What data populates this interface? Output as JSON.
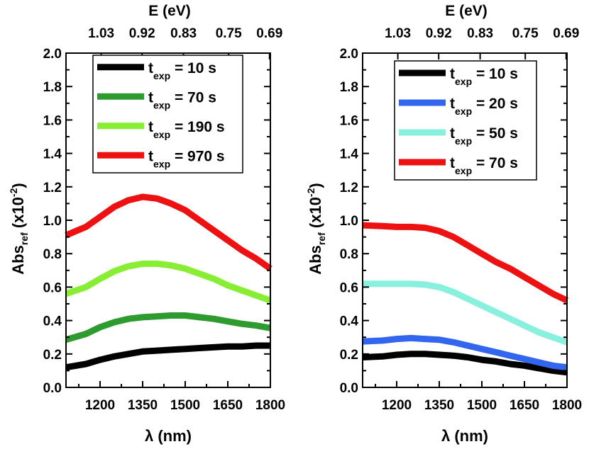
{
  "chart_data": [
    {
      "type": "line",
      "panel": "left",
      "xlabel": "λ (nm)",
      "ylabel": {
        "main": "Abs",
        "sub": "ref",
        "unit_open": " (x10",
        "unit_sup": "-2",
        "unit_close": ")"
      },
      "top_axis_title": "E (eV)",
      "xlim": [
        1080,
        1800
      ],
      "ylim": [
        0.0,
        2.0
      ],
      "x_ticks": [
        1200,
        1350,
        1500,
        1650,
        1800
      ],
      "y_ticks": [
        "0.0",
        "0.2",
        "0.4",
        "0.6",
        "0.8",
        "1.0",
        "1.2",
        "1.4",
        "1.6",
        "1.8",
        "2.0"
      ],
      "top_ticks": [
        {
          "label": "1.03",
          "at_nm": 1204
        },
        {
          "label": "0.92",
          "at_nm": 1348
        },
        {
          "label": "0.83",
          "at_nm": 1494
        },
        {
          "label": "0.75",
          "at_nm": 1653
        },
        {
          "label": "0.69",
          "at_nm": 1797
        }
      ],
      "series": [
        {
          "name": "t",
          "sub": "exp",
          "value": " = 10 s",
          "color": "#000000",
          "x": [
            1080,
            1150,
            1200,
            1250,
            1300,
            1350,
            1400,
            1450,
            1500,
            1550,
            1600,
            1650,
            1700,
            1750,
            1800
          ],
          "y": [
            0.12,
            0.14,
            0.165,
            0.185,
            0.2,
            0.215,
            0.22,
            0.225,
            0.23,
            0.235,
            0.24,
            0.245,
            0.245,
            0.25,
            0.25
          ]
        },
        {
          "name": "t",
          "sub": "exp",
          "value": " = 70 s",
          "color": "#2e9b2e",
          "x": [
            1080,
            1150,
            1200,
            1250,
            1300,
            1350,
            1400,
            1450,
            1500,
            1550,
            1600,
            1650,
            1700,
            1750,
            1800
          ],
          "y": [
            0.285,
            0.32,
            0.36,
            0.39,
            0.41,
            0.42,
            0.425,
            0.43,
            0.43,
            0.42,
            0.41,
            0.395,
            0.38,
            0.37,
            0.355
          ]
        },
        {
          "name": "t",
          "sub": "exp",
          "value": " = 190 s",
          "color": "#88ee33",
          "x": [
            1080,
            1150,
            1200,
            1250,
            1300,
            1350,
            1400,
            1450,
            1500,
            1550,
            1600,
            1650,
            1700,
            1750,
            1800
          ],
          "y": [
            0.56,
            0.6,
            0.65,
            0.695,
            0.725,
            0.74,
            0.74,
            0.73,
            0.71,
            0.68,
            0.65,
            0.61,
            0.58,
            0.55,
            0.52
          ]
        },
        {
          "name": "t",
          "sub": "exp",
          "value": " = 970 s",
          "color": "#ee1111",
          "x": [
            1080,
            1150,
            1200,
            1250,
            1300,
            1350,
            1400,
            1450,
            1500,
            1550,
            1600,
            1650,
            1700,
            1750,
            1800
          ],
          "y": [
            0.91,
            0.96,
            1.02,
            1.08,
            1.12,
            1.14,
            1.13,
            1.1,
            1.06,
            1.0,
            0.94,
            0.88,
            0.82,
            0.77,
            0.71
          ]
        }
      ]
    },
    {
      "type": "line",
      "panel": "right",
      "xlabel": "λ (nm)",
      "ylabel": {
        "main": "Abs",
        "sub": "ref",
        "unit_open": " (x10",
        "unit_sup": "-2",
        "unit_close": ")"
      },
      "top_axis_title": "E (eV)",
      "xlim": [
        1080,
        1800
      ],
      "ylim": [
        0.0,
        2.0
      ],
      "x_ticks": [
        1200,
        1350,
        1500,
        1650,
        1800
      ],
      "y_ticks": [
        "0.0",
        "0.2",
        "0.4",
        "0.6",
        "0.8",
        "1.0",
        "1.2",
        "1.4",
        "1.6",
        "1.8",
        "2.0"
      ],
      "top_ticks": [
        {
          "label": "1.03",
          "at_nm": 1204
        },
        {
          "label": "0.92",
          "at_nm": 1348
        },
        {
          "label": "0.83",
          "at_nm": 1494
        },
        {
          "label": "0.75",
          "at_nm": 1653
        },
        {
          "label": "0.69",
          "at_nm": 1797
        }
      ],
      "series": [
        {
          "name": "t",
          "sub": "exp",
          "value": " = 10 s",
          "color": "#000000",
          "x": [
            1080,
            1150,
            1200,
            1250,
            1300,
            1350,
            1400,
            1450,
            1500,
            1550,
            1600,
            1650,
            1700,
            1750,
            1800
          ],
          "y": [
            0.18,
            0.185,
            0.195,
            0.2,
            0.2,
            0.195,
            0.19,
            0.18,
            0.165,
            0.155,
            0.14,
            0.13,
            0.115,
            0.1,
            0.09
          ]
        },
        {
          "name": "t",
          "sub": "exp",
          "value": " = 20 s",
          "color": "#3366ee",
          "x": [
            1080,
            1150,
            1200,
            1250,
            1300,
            1350,
            1400,
            1450,
            1500,
            1550,
            1600,
            1650,
            1700,
            1750,
            1800
          ],
          "y": [
            0.275,
            0.28,
            0.29,
            0.295,
            0.29,
            0.285,
            0.27,
            0.25,
            0.23,
            0.21,
            0.19,
            0.17,
            0.15,
            0.13,
            0.12
          ]
        },
        {
          "name": "t",
          "sub": "exp",
          "value": " = 50 s",
          "color": "#88f0dd",
          "x": [
            1080,
            1150,
            1200,
            1250,
            1300,
            1350,
            1400,
            1450,
            1500,
            1550,
            1600,
            1650,
            1700,
            1750,
            1800
          ],
          "y": [
            0.62,
            0.62,
            0.62,
            0.62,
            0.615,
            0.6,
            0.57,
            0.53,
            0.49,
            0.45,
            0.41,
            0.37,
            0.33,
            0.3,
            0.27
          ]
        },
        {
          "name": "t",
          "sub": "exp",
          "value": " = 70 s",
          "color": "#ee1111",
          "x": [
            1080,
            1150,
            1200,
            1250,
            1300,
            1350,
            1400,
            1450,
            1500,
            1550,
            1600,
            1650,
            1700,
            1750,
            1800
          ],
          "y": [
            0.97,
            0.965,
            0.96,
            0.96,
            0.955,
            0.935,
            0.9,
            0.85,
            0.8,
            0.75,
            0.71,
            0.66,
            0.61,
            0.56,
            0.52
          ]
        }
      ]
    }
  ]
}
